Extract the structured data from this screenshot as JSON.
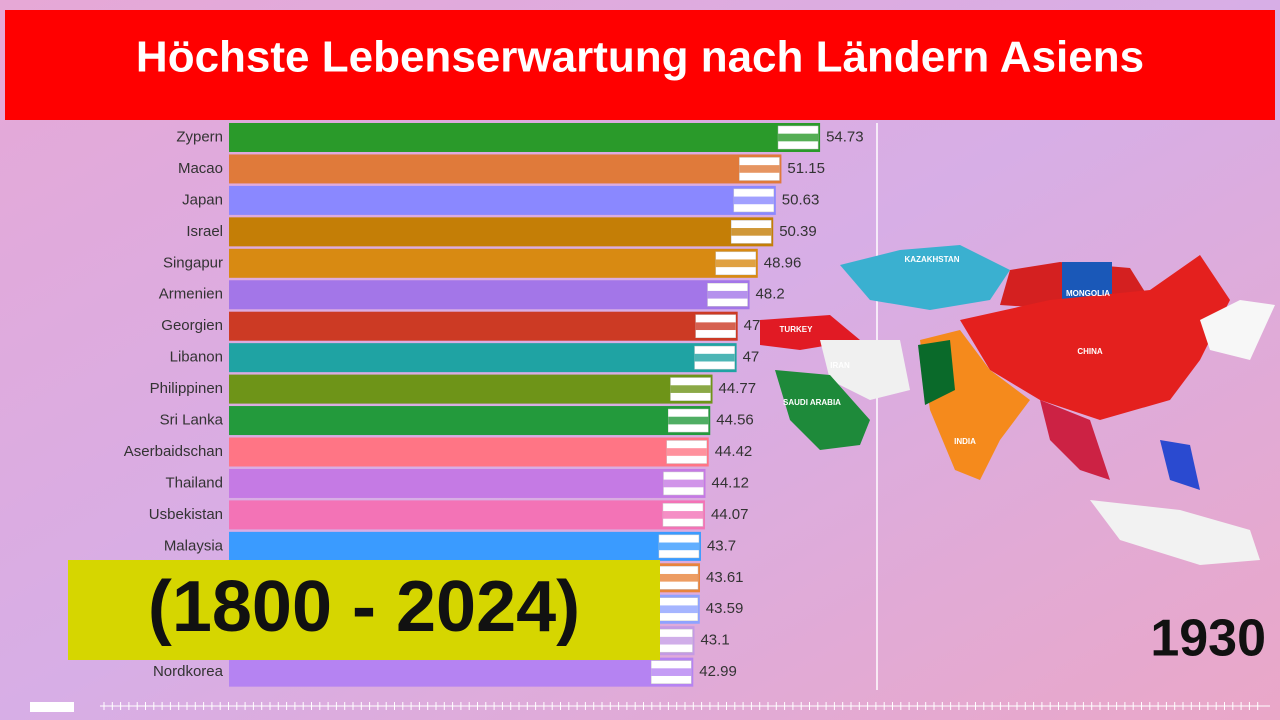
{
  "chart_data": {
    "type": "bar",
    "title": "Höchste Lebenserwartung nach Ländern Asiens",
    "subtitle": "(1800 - 2024)",
    "annotation": "1930",
    "categories": [
      "Zypern",
      "Macao",
      "Japan",
      "Israel",
      "Singapur",
      "Armenien",
      "Georgien",
      "Libanon",
      "Philippinen",
      "Sri Lanka",
      "Aserbaidschan",
      "Thailand",
      "Usbekistan",
      "Malaysia",
      null,
      null,
      null,
      "Nordkorea"
    ],
    "values": [
      54.73,
      51.15,
      50.63,
      50.39,
      48.96,
      48.2,
      47.1,
      47,
      44.77,
      44.56,
      44.42,
      44.12,
      44.07,
      43.7,
      43.61,
      43.59,
      43.1,
      42.99
    ],
    "colors": [
      "#2a9a2a",
      "#e07a3a",
      "#8a88ff",
      "#c47e06",
      "#d88a12",
      "#a376e8",
      "#cc3a24",
      "#1fa3a3",
      "#6e9418",
      "#239a3c",
      "#ff7585",
      "#c57ae4",
      "#f373b6",
      "#3a9bff",
      "#e8843c",
      "#8ea2ff",
      "#c49ae4",
      "#b583f2"
    ],
    "xlim": [
      0,
      60
    ],
    "map_labels": [
      "KAZAKHSTAN",
      "MONGOLIA",
      "CHINA",
      "TURKEY",
      "IRAN",
      "SAUDI ARABIA",
      "INDIA"
    ]
  }
}
